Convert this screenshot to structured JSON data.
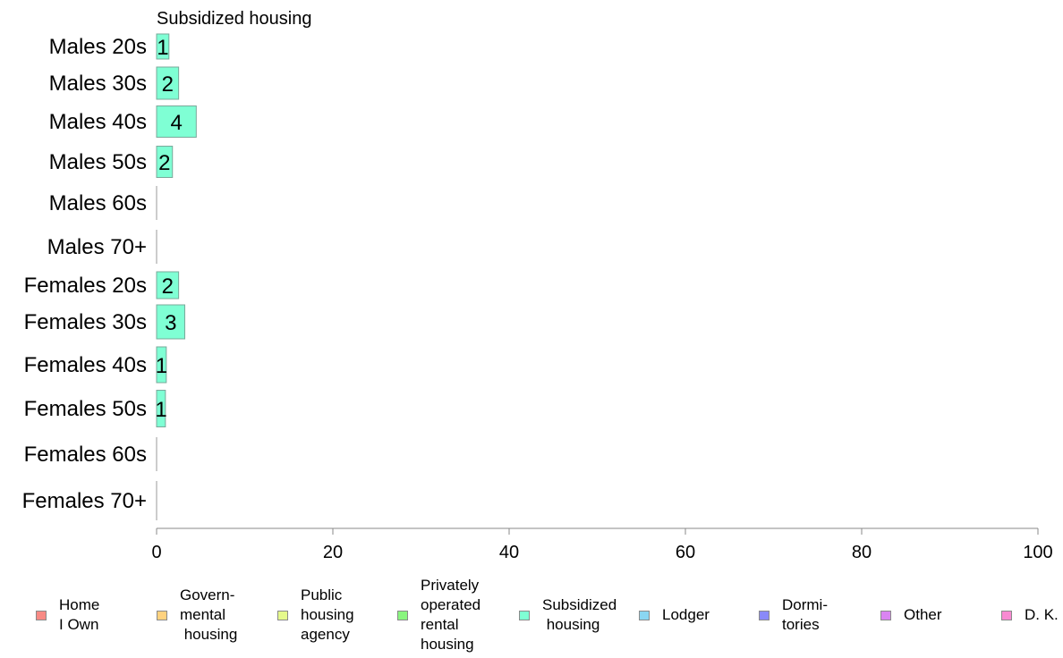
{
  "chart_data": {
    "type": "bar",
    "orientation": "horizontal",
    "title": "Subsidized housing",
    "categories": [
      "Males 20s",
      "Males 30s",
      "Males 40s",
      "Males 50s",
      "Males 60s",
      "Males 70+",
      "Females 20s",
      "Females 30s",
      "Females 40s",
      "Females 50s",
      "Females 60s",
      "Females 70+"
    ],
    "values": [
      1.4,
      2.5,
      4.5,
      1.8,
      0,
      0,
      2.5,
      3.2,
      1.1,
      1.0,
      0,
      0
    ],
    "value_labels": [
      "1",
      "2",
      "4",
      "2",
      "",
      "",
      "2",
      "3",
      "1",
      "1",
      "",
      ""
    ],
    "xlim": [
      0,
      100
    ],
    "xticks": [
      "0",
      "20",
      "40",
      "60",
      "80",
      "100"
    ],
    "grid": false,
    "bar_color": "#7fffd4",
    "bar_border_color": "#7aa89a",
    "legend_position": "bottom",
    "legend": [
      {
        "label": "Home\nI Own",
        "color": "#f88a84"
      },
      {
        "label": "Govern-\nmental\n housing",
        "color": "#ffd27f"
      },
      {
        "label": "Public\nhousing\nagency",
        "color": "#e5f98c"
      },
      {
        "label": "Privately\noperated\nrental\nhousing",
        "color": "#8af57f"
      },
      {
        "label": "Subsidized\n housing",
        "color": "#7fffd4"
      },
      {
        "label": "Lodger",
        "color": "#8ad6f2"
      },
      {
        "label": "Dormi-\ntories",
        "color": "#8a8af8"
      },
      {
        "label": "Other",
        "color": "#da84f2"
      },
      {
        "label": "D. K.",
        "color": "#f88ad2"
      }
    ]
  }
}
